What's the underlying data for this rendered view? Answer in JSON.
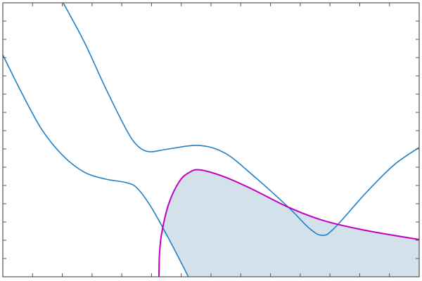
{
  "chart_data": {
    "type": "line",
    "title": "",
    "xlabel": "",
    "ylabel": "",
    "xlim": [
      0,
      14
    ],
    "ylim": [
      0,
      15
    ],
    "x_ticks": [
      0,
      1,
      2,
      3,
      4,
      5,
      6,
      7,
      8,
      9,
      10,
      11,
      12,
      13,
      14
    ],
    "y_ticks": [
      0,
      1,
      2,
      3,
      4,
      5,
      6,
      7,
      8,
      9,
      10,
      11,
      12,
      13,
      14,
      15
    ],
    "tick_labels_shown": false,
    "grid": false,
    "legend": "none",
    "series": [
      {
        "color": "#1f80c8",
        "points": [
          [
            2.03,
            15.0
          ],
          [
            2.74,
            12.85
          ],
          [
            3.45,
            10.35
          ],
          [
            4.16,
            8.04
          ],
          [
            4.52,
            7.19
          ],
          [
            4.92,
            6.85
          ],
          [
            5.58,
            7.0
          ],
          [
            6.6,
            7.19
          ],
          [
            7.47,
            6.77
          ],
          [
            8.42,
            5.54
          ],
          [
            9.6,
            3.81
          ],
          [
            10.31,
            2.65
          ],
          [
            10.74,
            2.27
          ],
          [
            11.14,
            2.65
          ],
          [
            12.2,
            4.58
          ],
          [
            13.15,
            6.12
          ],
          [
            14.0,
            7.08
          ]
        ]
      },
      {
        "color": "#1f80c8",
        "points": [
          [
            0,
            12.15
          ],
          [
            0.61,
            10.15
          ],
          [
            1.32,
            8.04
          ],
          [
            2.03,
            6.62
          ],
          [
            2.74,
            5.73
          ],
          [
            3.45,
            5.35
          ],
          [
            4.16,
            5.15
          ],
          [
            4.52,
            4.85
          ],
          [
            4.99,
            3.81
          ],
          [
            5.58,
            2.08
          ],
          [
            6.24,
            0
          ]
        ]
      },
      {
        "color": "#c000c0",
        "points": [
          [
            5.25,
            0
          ],
          [
            5.27,
            1.31
          ],
          [
            5.35,
            2.46
          ],
          [
            5.58,
            4.0
          ],
          [
            5.94,
            5.23
          ],
          [
            6.29,
            5.73
          ],
          [
            6.64,
            5.85
          ],
          [
            7.47,
            5.46
          ],
          [
            8.42,
            4.77
          ],
          [
            9.6,
            3.81
          ],
          [
            10.78,
            3.08
          ],
          [
            12.2,
            2.54
          ],
          [
            14.0,
            2.04
          ]
        ]
      }
    ],
    "shaded_region": {
      "color": "#d3e2ea",
      "boundary": [
        [
          5.35,
          2.46
        ],
        [
          5.58,
          4.0
        ],
        [
          5.94,
          5.23
        ],
        [
          6.29,
          5.73
        ],
        [
          6.64,
          5.85
        ],
        [
          7.47,
          5.46
        ],
        [
          8.42,
          4.77
        ],
        [
          9.6,
          3.81
        ],
        [
          10.78,
          3.08
        ],
        [
          12.2,
          2.54
        ],
        [
          14.0,
          2.04
        ],
        [
          14.0,
          0
        ],
        [
          6.24,
          0
        ],
        [
          5.58,
          2.08
        ]
      ]
    },
    "axis_color": "#555555"
  }
}
